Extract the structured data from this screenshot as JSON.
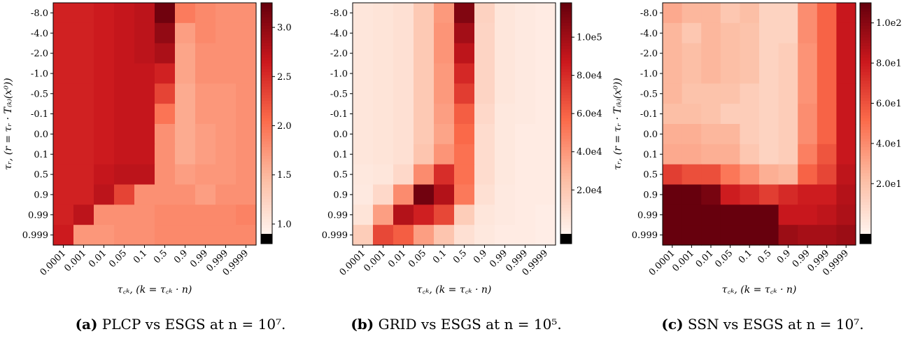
{
  "chart_data": [
    {
      "type": "heatmap",
      "caption_tag": "(a)",
      "caption_text": "PLCP vs ESGS at n = 10⁷.",
      "xlabel": "τ꜀ₖ, (k = τ꜀ₖ · n)",
      "ylabel": "τᵣ, (r = τᵣ · T₍ₖ₎(x⁰))",
      "x": [
        "0.0001",
        "0.001",
        "0.01",
        "0.05",
        "0.1",
        "0.5",
        "0.9",
        "0.99",
        "0.999",
        "0.9999"
      ],
      "y": [
        "-8.0",
        "-4.0",
        "-2.0",
        "-1.0",
        "-0.5",
        "-0.1",
        "0.0",
        "0.1",
        "0.5",
        "0.9",
        "0.99",
        "0.999"
      ],
      "values": [
        [
          2.6,
          2.6,
          2.65,
          2.7,
          2.75,
          3.2,
          1.95,
          1.85,
          1.8,
          1.8
        ],
        [
          2.6,
          2.6,
          2.65,
          2.7,
          2.75,
          3.0,
          1.7,
          1.85,
          1.8,
          1.8
        ],
        [
          2.6,
          2.6,
          2.65,
          2.7,
          2.75,
          2.85,
          1.65,
          1.8,
          1.8,
          1.8
        ],
        [
          2.6,
          2.6,
          2.65,
          2.7,
          2.7,
          2.6,
          1.65,
          1.8,
          1.8,
          1.8
        ],
        [
          2.6,
          2.6,
          2.65,
          2.7,
          2.7,
          2.35,
          1.6,
          1.75,
          1.75,
          1.8
        ],
        [
          2.6,
          2.6,
          2.65,
          2.7,
          2.7,
          2.0,
          1.6,
          1.75,
          1.75,
          1.8
        ],
        [
          2.6,
          2.6,
          2.65,
          2.7,
          2.7,
          1.8,
          1.6,
          1.7,
          1.75,
          1.8
        ],
        [
          2.6,
          2.6,
          2.65,
          2.7,
          2.7,
          1.8,
          1.6,
          1.7,
          1.75,
          1.8
        ],
        [
          2.6,
          2.6,
          2.7,
          2.75,
          2.75,
          1.8,
          1.7,
          1.75,
          1.75,
          1.8
        ],
        [
          2.6,
          2.6,
          2.75,
          2.35,
          1.8,
          1.8,
          1.8,
          1.7,
          1.8,
          1.8
        ],
        [
          2.6,
          2.75,
          1.8,
          1.8,
          1.8,
          1.85,
          1.85,
          1.85,
          1.85,
          1.9
        ],
        [
          2.65,
          1.75,
          1.75,
          1.8,
          1.8,
          1.85,
          1.85,
          1.85,
          1.85,
          1.85
        ]
      ],
      "colorbar": {
        "min": 0.9,
        "max": 3.25,
        "ticks": [
          1.0,
          1.5,
          2.0,
          2.5,
          3.0
        ],
        "tick_labels": [
          "1.0",
          "1.5",
          "2.0",
          "2.5",
          "3.0"
        ],
        "under_color": "#000000"
      },
      "colormap": "Reds"
    },
    {
      "type": "heatmap",
      "caption_tag": "(b)",
      "caption_text": "GRID vs ESGS at n = 10⁵.",
      "xlabel": "τ꜀ₖ, (k = τ꜀ₖ · n)",
      "ylabel": "",
      "x": [
        "0.0001",
        "0.001",
        "0.01",
        "0.05",
        "0.1",
        "0.5",
        "0.9",
        "0.99",
        "0.999",
        "0.9999"
      ],
      "y": [
        "-8.0",
        "-4.0",
        "-2.0",
        "-1.0",
        "-0.5",
        "-0.1",
        "0.0",
        "0.1",
        "0.5",
        "0.9",
        "0.99",
        "0.999"
      ],
      "values": [
        [
          5000,
          6000,
          8000,
          20000,
          40000,
          110000,
          15000,
          5000,
          3000,
          2000
        ],
        [
          5000,
          6000,
          8000,
          20000,
          42000,
          100000,
          14000,
          5000,
          3000,
          2000
        ],
        [
          5000,
          6000,
          8000,
          20000,
          42000,
          92000,
          14000,
          5000,
          3000,
          2000
        ],
        [
          5000,
          6000,
          8000,
          20000,
          40000,
          82000,
          14000,
          5000,
          3000,
          2000
        ],
        [
          5000,
          6000,
          8000,
          20000,
          40000,
          74000,
          14000,
          5000,
          3000,
          2000
        ],
        [
          5000,
          6000,
          8000,
          20000,
          38000,
          62000,
          12000,
          4000,
          3000,
          2000
        ],
        [
          5000,
          6000,
          8000,
          20000,
          36000,
          58000,
          10000,
          4000,
          2000,
          2000
        ],
        [
          5000,
          6000,
          8000,
          22000,
          42000,
          55000,
          10000,
          4000,
          2000,
          2000
        ],
        [
          4000,
          5000,
          12000,
          45000,
          80000,
          55000,
          10000,
          4000,
          2000,
          2000
        ],
        [
          3000,
          12000,
          45000,
          115000,
          95000,
          52000,
          8000,
          3000,
          2000,
          2000
        ],
        [
          6000,
          38000,
          95000,
          85000,
          70000,
          18000,
          5000,
          3000,
          2000,
          1000
        ],
        [
          18000,
          70000,
          62000,
          38000,
          22000,
          8000,
          4000,
          2000,
          2000,
          1000
        ]
      ],
      "colorbar": {
        "min": -3000,
        "max": 118000,
        "ticks": [
          20000,
          40000,
          60000,
          80000,
          100000
        ],
        "tick_labels": [
          "2.0e4",
          "4.0e4",
          "6.0e4",
          "8.0e4",
          "1.0e5"
        ],
        "under_color": "#000000"
      },
      "colormap": "Reds"
    },
    {
      "type": "heatmap",
      "caption_tag": "(c)",
      "caption_text": "SSN vs ESGS at n = 10⁷.",
      "xlabel": "τ꜀ₖ, (k = τ꜀ₖ · n)",
      "ylabel": "τᵣ, (r = τᵣ · T₍ₖ₎(x⁰))",
      "x": [
        "0.0001",
        "0.001",
        "0.01",
        "0.05",
        "0.1",
        "0.5",
        "0.9",
        "0.99",
        "0.999",
        "0.9999"
      ],
      "y": [
        "-8.0",
        "-4.0",
        "-2.0",
        "-1.0",
        "-0.5",
        "-0.1",
        "0.0",
        "0.1",
        "0.5",
        "0.9",
        "0.99",
        "0.999"
      ],
      "values": [
        [
          30,
          25,
          25,
          18,
          22,
          12,
          12,
          40,
          55,
          82
        ],
        [
          25,
          18,
          25,
          22,
          20,
          12,
          12,
          40,
          55,
          82
        ],
        [
          25,
          22,
          25,
          22,
          20,
          12,
          15,
          38,
          55,
          82
        ],
        [
          25,
          22,
          25,
          22,
          20,
          12,
          15,
          38,
          55,
          82
        ],
        [
          25,
          20,
          20,
          20,
          15,
          12,
          15,
          38,
          55,
          82
        ],
        [
          22,
          22,
          20,
          15,
          15,
          12,
          15,
          40,
          55,
          82
        ],
        [
          28,
          28,
          25,
          25,
          15,
          12,
          15,
          40,
          55,
          82
        ],
        [
          30,
          30,
          28,
          28,
          18,
          12,
          15,
          45,
          60,
          82
        ],
        [
          68,
          62,
          62,
          48,
          38,
          28,
          25,
          55,
          65,
          85
        ],
        [
          115,
          115,
          105,
          80,
          75,
          68,
          75,
          80,
          80,
          88
        ],
        [
          115,
          115,
          115,
          115,
          115,
          115,
          82,
          82,
          85,
          90
        ],
        [
          115,
          115,
          115,
          115,
          115,
          115,
          95,
          92,
          92,
          95
        ]
      ],
      "colorbar": {
        "min": -5,
        "max": 110,
        "ticks": [
          20,
          40,
          60,
          80,
          100
        ],
        "tick_labels": [
          "2.0e1",
          "4.0e1",
          "6.0e1",
          "8.0e1",
          "1.0e2"
        ],
        "under_color": "#000000"
      },
      "colormap": "Reds"
    }
  ]
}
